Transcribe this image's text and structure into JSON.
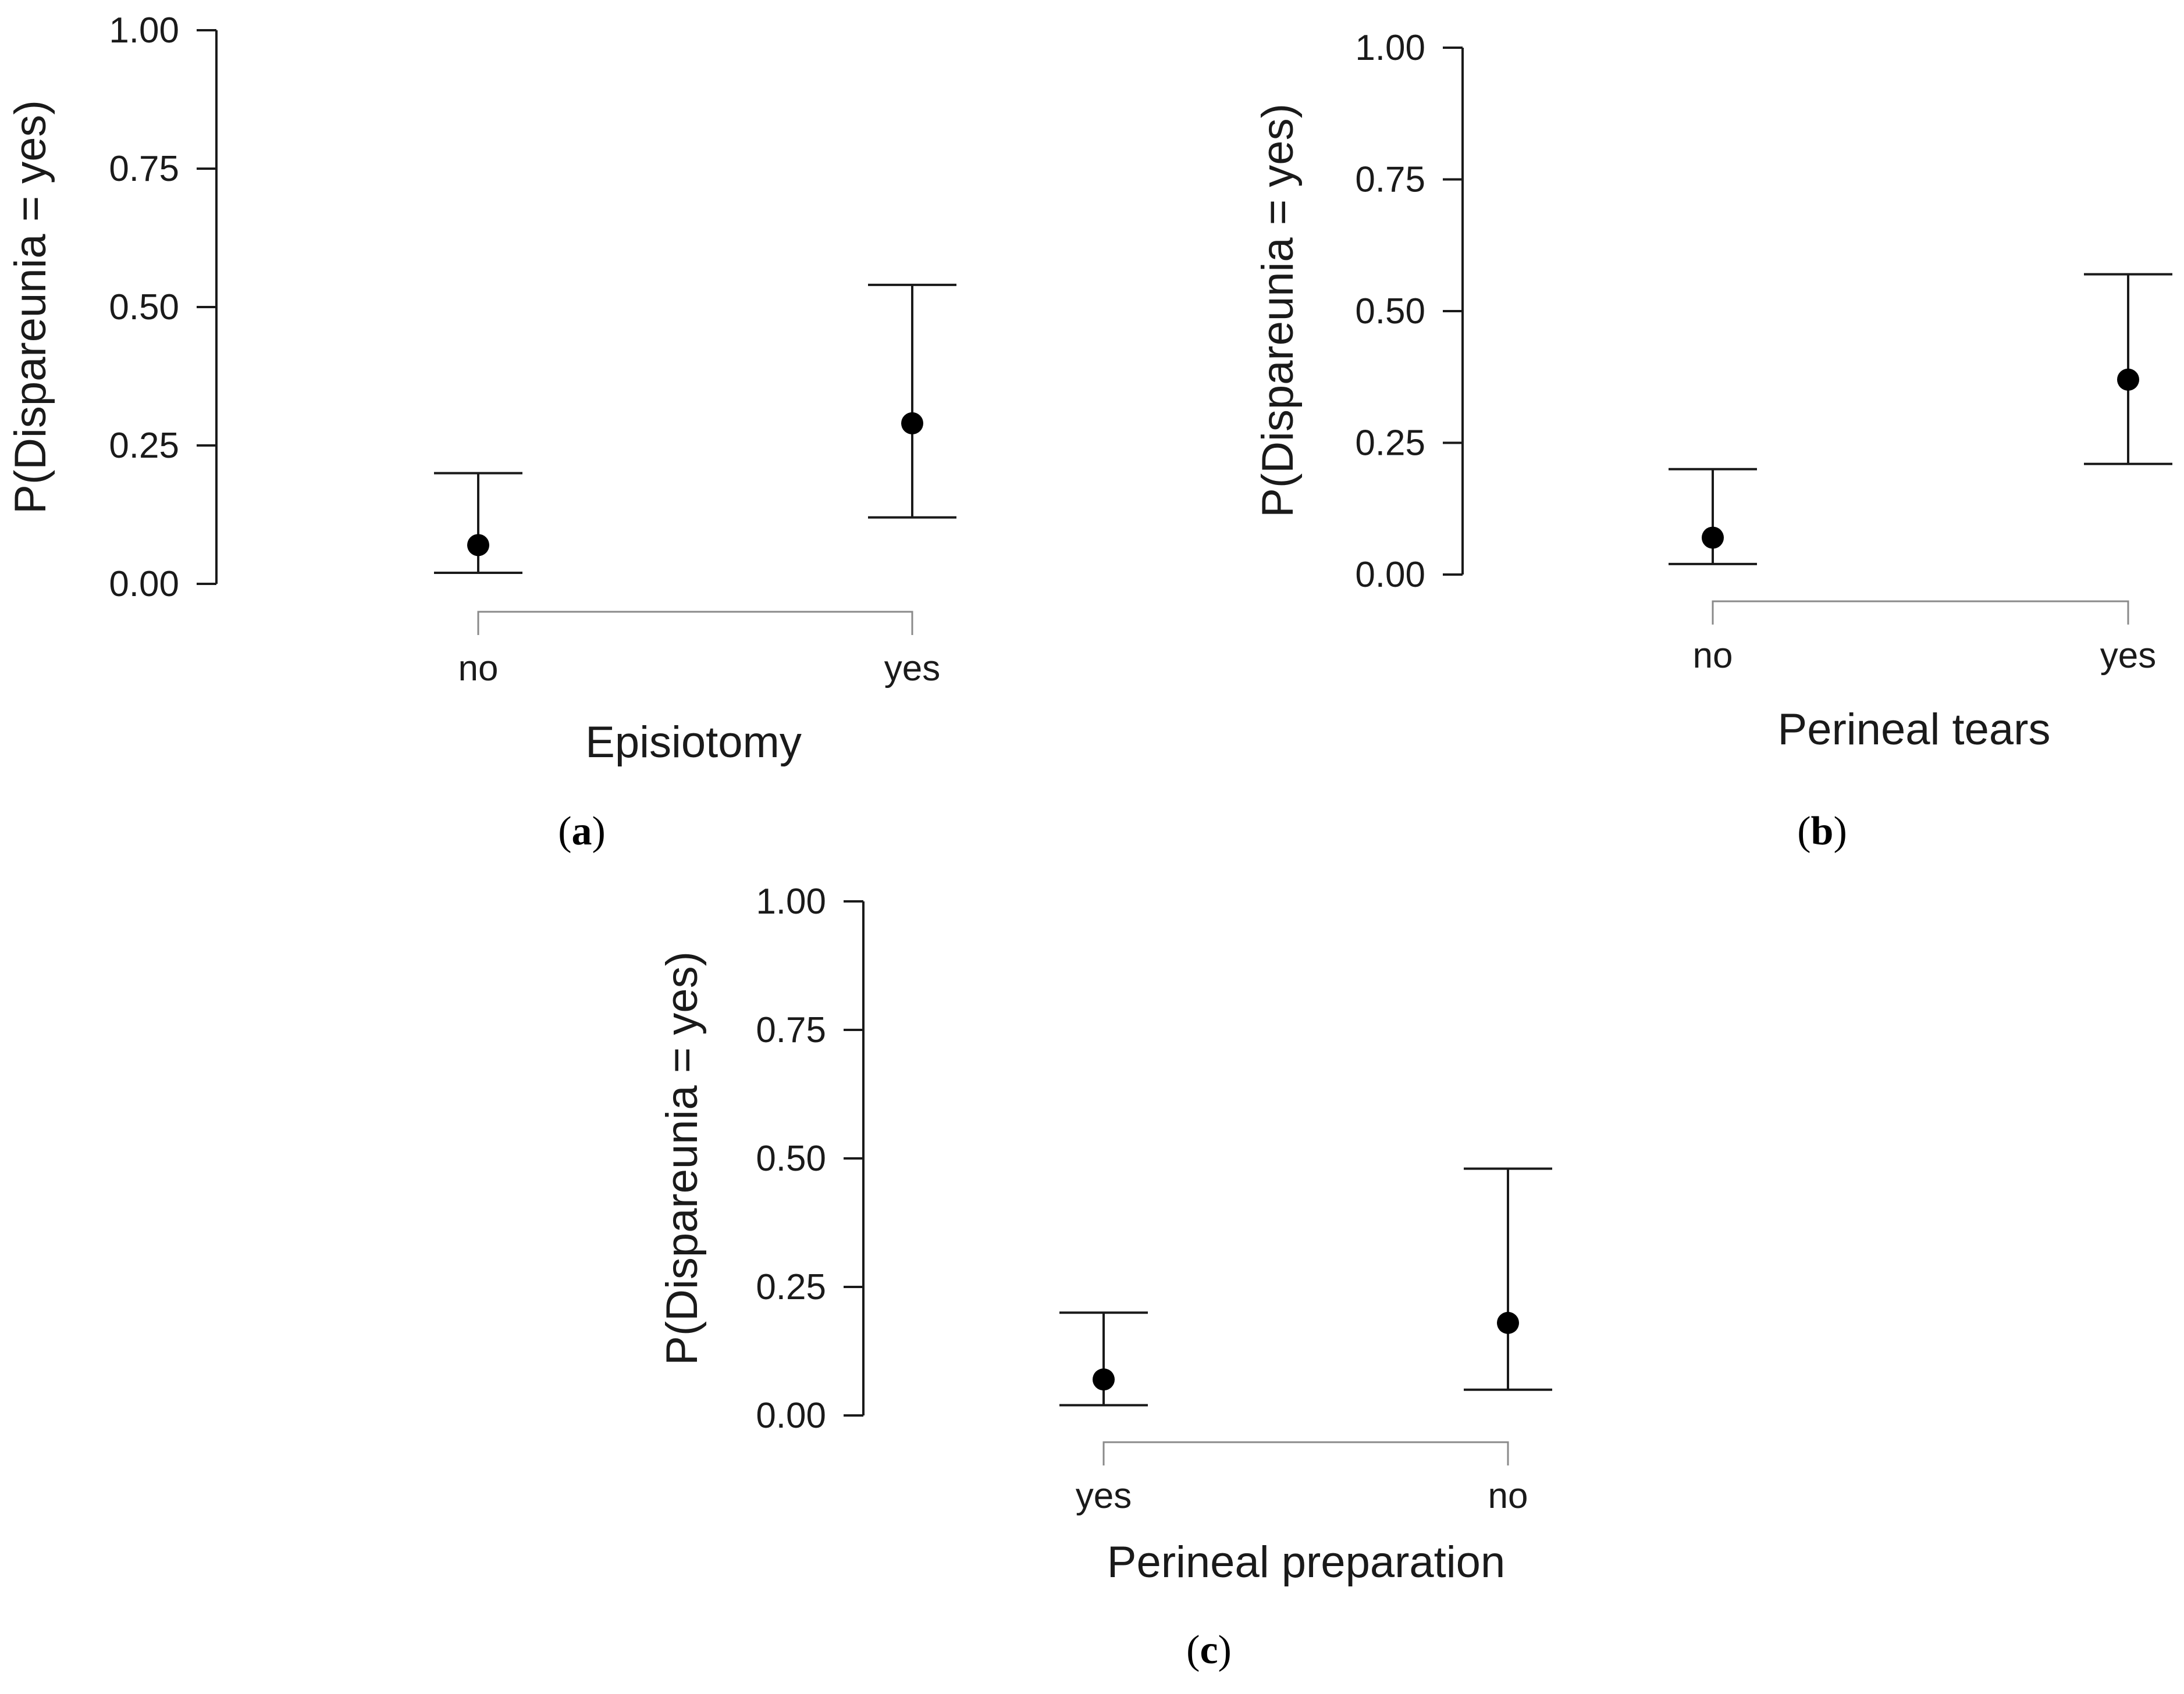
{
  "colors": {
    "ink": "#1a1a1a",
    "point": "#000000",
    "bracket": "#8a8a8a"
  },
  "chart_data": [
    {
      "panel": "a",
      "panel_label_open": "(",
      "panel_label_letter": "a",
      "panel_label_close": ")",
      "type": "scatter",
      "xlabel": "Episiotomy",
      "ylabel": "P(Dispareunia = yes)",
      "ylim": [
        0,
        1
      ],
      "yticks": [
        "0.00",
        "0.25",
        "0.50",
        "0.75",
        "1.00"
      ],
      "categories": [
        "no",
        "yes"
      ],
      "estimate": [
        0.07,
        0.29
      ],
      "ci_lower": [
        0.02,
        0.12
      ],
      "ci_upper": [
        0.2,
        0.54
      ]
    },
    {
      "panel": "b",
      "panel_label_open": "(",
      "panel_label_letter": "b",
      "panel_label_close": ")",
      "type": "scatter",
      "xlabel": "Perineal tears",
      "ylabel": "P(Dispareunia = yes)",
      "ylim": [
        0,
        1
      ],
      "yticks": [
        "0.00",
        "0.25",
        "0.50",
        "0.75",
        "1.00"
      ],
      "categories": [
        "no",
        "yes"
      ],
      "estimate": [
        0.07,
        0.37
      ],
      "ci_lower": [
        0.02,
        0.21
      ],
      "ci_upper": [
        0.2,
        0.57
      ]
    },
    {
      "panel": "c",
      "panel_label_open": "(",
      "panel_label_letter": "c",
      "panel_label_close": ")",
      "type": "scatter",
      "xlabel": "Perineal preparation",
      "ylabel": "P(Dispareunia = yes)",
      "ylim": [
        0,
        1
      ],
      "yticks": [
        "0.00",
        "0.25",
        "0.50",
        "0.75",
        "1.00"
      ],
      "categories": [
        "yes",
        "no"
      ],
      "estimate": [
        0.07,
        0.18
      ],
      "ci_lower": [
        0.02,
        0.05
      ],
      "ci_upper": [
        0.2,
        0.48
      ]
    }
  ]
}
